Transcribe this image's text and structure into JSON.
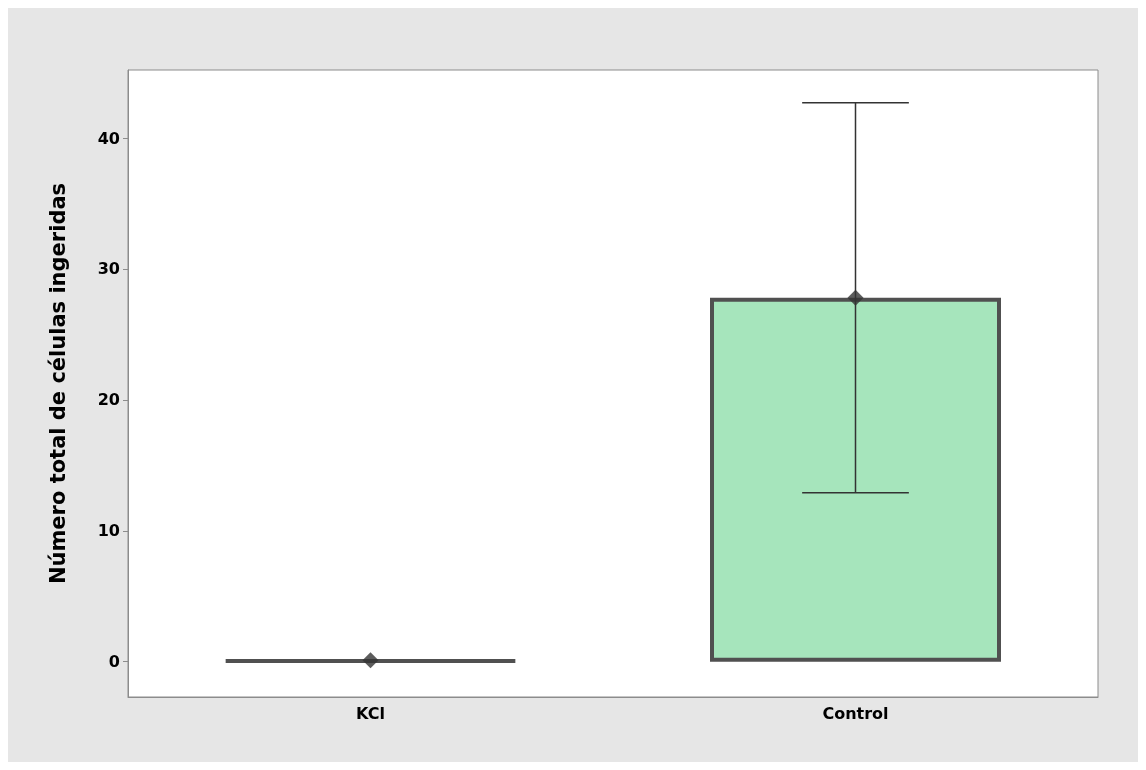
{
  "chart_data": {
    "type": "bar",
    "ylabel": "Número total de células ingeridas",
    "categories": [
      "KCl",
      "Control"
    ],
    "series": [
      {
        "colors": [
          "#505050",
          "#a6e5bc"
        ],
        "values": [
          0.1,
          27.8
        ],
        "errors": [
          null,
          [
            12.9,
            42.7
          ]
        ]
      },
      {
        "type": "scatter",
        "color": "#333333",
        "x": [
          "KCl",
          "Control"
        ],
        "values": [
          0.1,
          27.8
        ],
        "marker": "diamond"
      }
    ],
    "ylim": [
      -2.7,
      45.2
    ],
    "yticks": [
      0,
      10,
      20,
      30,
      40
    ],
    "grid": false
  }
}
